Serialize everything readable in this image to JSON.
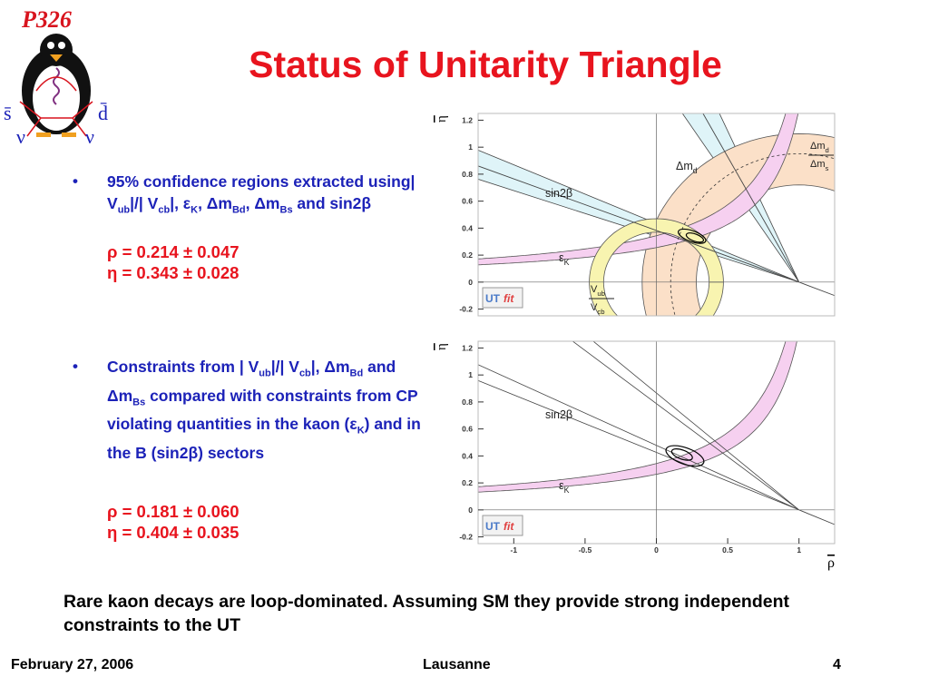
{
  "logo": {
    "title": "P326",
    "left_quark": "s̄",
    "right_quark": "d̄",
    "left_nu": "ν",
    "right_nu": "ν"
  },
  "title": "Status of Unitarity Triangle",
  "bullets": [
    {
      "runs": [
        {
          "t": "95% confidence regions extracted using| V"
        },
        {
          "sub": "ub"
        },
        {
          "t": "|/| V"
        },
        {
          "sub": "cb"
        },
        {
          "t": "|, ε"
        },
        {
          "sub": "K"
        },
        {
          "t": ", Δm"
        },
        {
          "sub": "Bd"
        },
        {
          "t": ", Δm"
        },
        {
          "sub": "Bs"
        },
        {
          "t": " and sin2β"
        }
      ],
      "results": [
        "ρ = 0.214 ± 0.047",
        "η = 0.343 ± 0.028"
      ]
    },
    {
      "runs": [
        {
          "t": "Constraints from | V"
        },
        {
          "sub": "ub"
        },
        {
          "t": "|/| V"
        },
        {
          "sub": "cb"
        },
        {
          "t": "|, Δm"
        },
        {
          "sub": "Bd"
        },
        {
          "t": " and Δm"
        },
        {
          "sub": "Bs"
        },
        {
          "t": " compared with constraints from CP violating quantities in the kaon (ε"
        },
        {
          "sub": "K"
        },
        {
          "t": ") and in the B (sin2β) sectors"
        }
      ],
      "results": [
        "ρ = 0.181 ± 0.060",
        "η = 0.404 ± 0.035"
      ]
    }
  ],
  "plots": [
    {
      "xlim": [
        -1.25,
        1.25
      ],
      "ylim": [
        -0.25,
        1.25
      ],
      "yticks": [
        -0.2,
        0,
        0.2,
        0.4,
        0.6,
        0.8,
        1,
        1.2
      ],
      "y_label": "η",
      "labels": {
        "sin2beta": [
          {
            "t": "sin2β"
          }
        ],
        "eps": [
          {
            "t": "ε"
          },
          {
            "sub": "K"
          }
        ],
        "dmd": [
          {
            "t": "Δm"
          },
          {
            "sub": "d"
          }
        ],
        "utfit": [
          {
            "t": "UT"
          },
          {
            "t": "fit"
          }
        ]
      },
      "fractions": {
        "ratio": {
          "num": [
            {
              "t": "Δm"
            },
            {
              "sub": "d"
            }
          ],
          "den": [
            {
              "t": "Δm"
            },
            {
              "sub": "s"
            }
          ]
        },
        "vub": {
          "num": [
            {
              "t": "V"
            },
            {
              "sub": "ub"
            }
          ],
          "den": [
            {
              "t": "V"
            },
            {
              "sub": "cb"
            }
          ]
        }
      }
    },
    {
      "xlim": [
        -1.25,
        1.25
      ],
      "ylim": [
        -0.25,
        1.25
      ],
      "yticks": [
        -0.2,
        0,
        0.2,
        0.4,
        0.6,
        0.8,
        1,
        1.2
      ],
      "xticks": [
        -1,
        -0.5,
        0,
        0.5,
        1
      ],
      "y_label": "η",
      "x_label": "ρ",
      "labels": {
        "sin2beta": [
          {
            "t": "sin2β"
          }
        ],
        "eps": [
          {
            "t": "ε"
          },
          {
            "sub": "K"
          }
        ],
        "utfit": [
          {
            "t": "UT"
          },
          {
            "t": "fit"
          }
        ]
      }
    }
  ],
  "conclusion": "Rare kaon decays are loop-dominated. Assuming SM they provide strong independent constraints to the UT",
  "footer": {
    "date": "February 27, 2006",
    "place": "Lausanne",
    "page": 4
  }
}
